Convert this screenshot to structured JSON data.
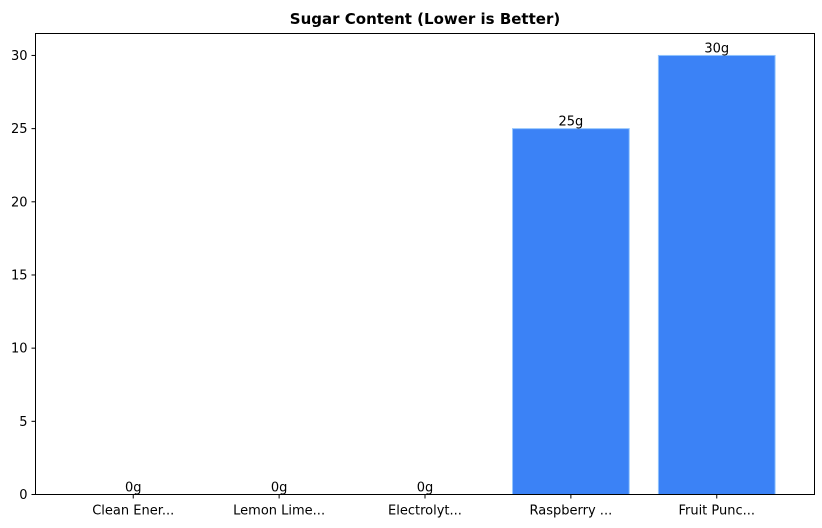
{
  "chart_data": {
    "type": "bar",
    "title": "Sugar Content (Lower is Better)",
    "xlabel": "",
    "ylabel": "",
    "categories": [
      "Clean Ener...",
      "Lemon Lime...",
      "Electrolyt...",
      "Raspberry ...",
      "Fruit Punc..."
    ],
    "values": [
      0,
      0,
      0,
      25,
      30
    ],
    "data_labels": [
      "0g",
      "0g",
      "0g",
      "25g",
      "30g"
    ],
    "yticks": [
      0,
      5,
      10,
      15,
      20,
      25,
      30
    ],
    "ylim": [
      0,
      31.5
    ],
    "grid": false,
    "bar_color": "#3b82f6",
    "bar_edge_color": "#93c5fd"
  }
}
